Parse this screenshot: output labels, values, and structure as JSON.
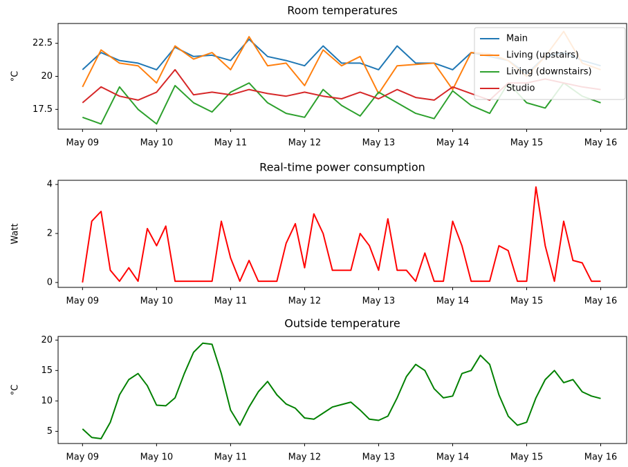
{
  "chart_data": [
    {
      "type": "line",
      "title": "Room temperatures",
      "ylabel": "°C",
      "x": [
        0,
        0.25,
        0.5,
        0.75,
        1,
        1.25,
        1.5,
        1.75,
        2,
        2.25,
        2.5,
        2.75,
        3,
        3.25,
        3.5,
        3.75,
        4,
        4.25,
        4.5,
        4.75,
        5,
        5.25,
        5.5,
        5.75,
        6,
        6.25,
        6.5,
        6.75,
        7
      ],
      "series": [
        {
          "name": "Main",
          "color": "#1f77b4",
          "values": [
            20.5,
            21.8,
            21.2,
            21.0,
            20.5,
            22.2,
            21.5,
            21.6,
            21.2,
            22.8,
            21.5,
            21.2,
            20.8,
            22.3,
            21.0,
            21.0,
            20.5,
            22.3,
            21.0,
            21.0,
            20.5,
            21.8,
            21.5,
            21.2,
            20.2,
            21.5,
            21.8,
            21.2,
            20.8
          ]
        },
        {
          "name": "Living (upstairs)",
          "color": "#ff7f0e",
          "values": [
            19.2,
            22.0,
            21.0,
            20.8,
            19.5,
            22.3,
            21.3,
            21.8,
            20.5,
            23.0,
            20.8,
            21.0,
            19.3,
            22.0,
            20.8,
            21.5,
            18.7,
            20.8,
            20.9,
            21.0,
            19.0,
            21.8,
            21.7,
            21.2,
            20.0,
            21.5,
            23.4,
            21.0,
            20.5
          ]
        },
        {
          "name": "Living (downstairs)",
          "color": "#2ca02c",
          "values": [
            16.9,
            16.4,
            19.2,
            17.5,
            16.4,
            19.3,
            18.0,
            17.3,
            18.8,
            19.5,
            18.0,
            17.2,
            16.9,
            19.0,
            17.8,
            17.0,
            18.8,
            18.0,
            17.2,
            16.8,
            18.9,
            17.8,
            17.2,
            19.5,
            18.0,
            17.6,
            19.5,
            18.5,
            18.0
          ]
        },
        {
          "name": "Studio",
          "color": "#d62728",
          "values": [
            18.0,
            19.2,
            18.5,
            18.2,
            18.8,
            20.5,
            18.6,
            18.8,
            18.6,
            19.0,
            18.7,
            18.5,
            18.8,
            18.5,
            18.3,
            18.8,
            18.3,
            19.0,
            18.4,
            18.2,
            19.2,
            18.7,
            18.2,
            19.5,
            19.5,
            19.8,
            19.5,
            19.2,
            19.0
          ]
        }
      ],
      "xlim": [
        -0.33,
        7.35
      ],
      "xticks": [
        {
          "value": 0,
          "label": "May 09"
        },
        {
          "value": 1,
          "label": "May 10"
        },
        {
          "value": 2,
          "label": "May 11"
        },
        {
          "value": 3,
          "label": "May 12"
        },
        {
          "value": 4,
          "label": "May 13"
        },
        {
          "value": 5,
          "label": "May 14"
        },
        {
          "value": 6,
          "label": "May 15"
        },
        {
          "value": 7,
          "label": "May 16"
        }
      ],
      "ylim": [
        16.0,
        24.0
      ],
      "yticks": [
        17.5,
        20.0,
        22.5
      ],
      "legend": "upper right"
    },
    {
      "type": "line",
      "title": "Real-time power consumption",
      "ylabel": "Watt",
      "x": [
        0,
        0.125,
        0.25,
        0.375,
        0.5,
        0.625,
        0.75,
        0.875,
        1,
        1.125,
        1.25,
        1.375,
        1.5,
        1.625,
        1.75,
        1.875,
        2,
        2.125,
        2.25,
        2.375,
        2.5,
        2.625,
        2.75,
        2.875,
        3,
        3.125,
        3.25,
        3.375,
        3.5,
        3.625,
        3.75,
        3.875,
        4,
        4.125,
        4.25,
        4.375,
        4.5,
        4.625,
        4.75,
        4.875,
        5,
        5.125,
        5.25,
        5.375,
        5.5,
        5.625,
        5.75,
        5.875,
        6,
        6.125,
        6.25,
        6.375,
        6.5,
        6.625,
        6.75,
        6.875,
        7
      ],
      "color": "#ff0000",
      "values": [
        0,
        2.5,
        2.9,
        0.5,
        0.05,
        0.6,
        0.05,
        2.2,
        1.5,
        2.3,
        0.05,
        0.05,
        0.05,
        0.05,
        0.05,
        2.5,
        1.0,
        0.05,
        0.9,
        0.05,
        0.05,
        0.05,
        1.6,
        2.4,
        0.6,
        2.8,
        2.0,
        0.5,
        0.5,
        0.5,
        2.0,
        1.5,
        0.5,
        2.6,
        0.5,
        0.5,
        0.05,
        1.2,
        0.05,
        0.05,
        2.5,
        1.5,
        0.05,
        0.05,
        0.05,
        1.5,
        1.3,
        0.05,
        0.05,
        3.9,
        1.5,
        0.05,
        2.5,
        0.9,
        0.8,
        0.05,
        0.05
      ],
      "xlim": [
        -0.33,
        7.35
      ],
      "xticks": [
        {
          "value": 0,
          "label": "May 09"
        },
        {
          "value": 1,
          "label": "May 10"
        },
        {
          "value": 2,
          "label": "May 11"
        },
        {
          "value": 3,
          "label": "May 12"
        },
        {
          "value": 4,
          "label": "May 13"
        },
        {
          "value": 5,
          "label": "May 14"
        },
        {
          "value": 6,
          "label": "May 15"
        },
        {
          "value": 7,
          "label": "May 16"
        }
      ],
      "ylim": [
        -0.2,
        4.17
      ],
      "yticks": [
        0,
        2,
        4
      ]
    },
    {
      "type": "line",
      "title": "Outside temperature",
      "ylabel": "°C",
      "x": [
        0,
        0.125,
        0.25,
        0.375,
        0.5,
        0.625,
        0.75,
        0.875,
        1,
        1.125,
        1.25,
        1.375,
        1.5,
        1.625,
        1.75,
        1.875,
        2,
        2.125,
        2.25,
        2.375,
        2.5,
        2.625,
        2.75,
        2.875,
        3,
        3.125,
        3.25,
        3.375,
        3.5,
        3.625,
        3.75,
        3.875,
        4,
        4.125,
        4.25,
        4.375,
        4.5,
        4.625,
        4.75,
        4.875,
        5,
        5.125,
        5.25,
        5.375,
        5.5,
        5.625,
        5.75,
        5.875,
        6,
        6.125,
        6.25,
        6.375,
        6.5,
        6.625,
        6.75,
        6.875,
        7
      ],
      "color": "#008000",
      "values": [
        5.4,
        4.0,
        3.8,
        6.5,
        11.0,
        13.5,
        14.5,
        12.5,
        9.3,
        9.2,
        10.5,
        14.5,
        18.0,
        19.5,
        19.3,
        14.5,
        8.5,
        6.0,
        9.0,
        11.5,
        13.2,
        11.0,
        9.5,
        8.8,
        7.2,
        7.0,
        8.0,
        9.0,
        9.4,
        9.8,
        8.5,
        7.0,
        6.8,
        7.5,
        10.5,
        14.0,
        16.0,
        15.0,
        12.0,
        10.5,
        10.8,
        14.5,
        15.0,
        17.5,
        16.0,
        11.0,
        7.5,
        6.0,
        6.5,
        10.5,
        13.5,
        15.0,
        13.0,
        13.5,
        11.5,
        10.8,
        10.4
      ],
      "xlim": [
        -0.33,
        7.35
      ],
      "xticks": [
        {
          "value": 0,
          "label": "May 09"
        },
        {
          "value": 1,
          "label": "May 10"
        },
        {
          "value": 2,
          "label": "May 11"
        },
        {
          "value": 3,
          "label": "May 12"
        },
        {
          "value": 4,
          "label": "May 13"
        },
        {
          "value": 5,
          "label": "May 14"
        },
        {
          "value": 6,
          "label": "May 15"
        },
        {
          "value": 7,
          "label": "May 16"
        }
      ],
      "ylim": [
        3.0,
        20.6
      ],
      "yticks": [
        5,
        10,
        15,
        20
      ]
    }
  ]
}
